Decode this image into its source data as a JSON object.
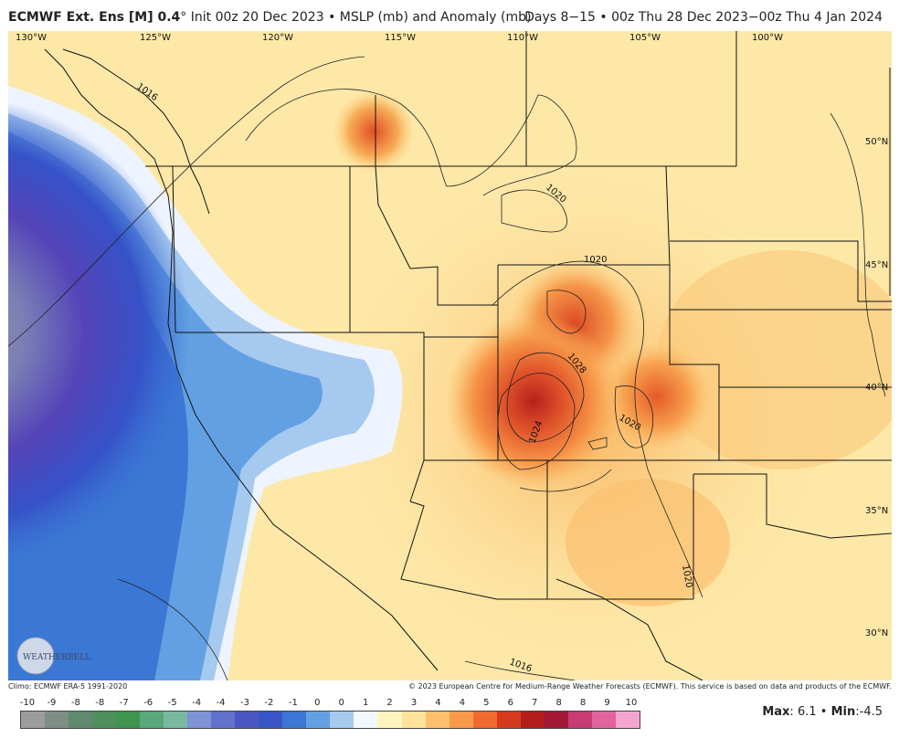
{
  "header": {
    "model_name": "ECMWF Ext. Ens [M] 0.4",
    "degree": "°",
    "init": "Init 00z 20 Dec 2023",
    "bullet": "•",
    "product": "MSLP (mb) and Anomaly (mb)",
    "valid": "Days 8−15 • 00z Thu 28 Dec 2023−00z Thu 4 Jan 2024"
  },
  "map": {
    "longitude_labels": [
      "130°W",
      "125°W",
      "120°W",
      "115°W",
      "110°W",
      "105°W",
      "100°W"
    ],
    "latitude_labels": [
      "50°N",
      "45°N",
      "40°N",
      "35°N",
      "30°N"
    ],
    "contour_labels": [
      "1016",
      "1020",
      "1020",
      "1028",
      "1024",
      "1020",
      "1020",
      "1016"
    ],
    "logo_text": "WEATHERBELL"
  },
  "credits": {
    "climo": "Climo: ECMWF ERA-5 1991-2020",
    "copyright": "© 2023 European Centre for Medium-Range Weather Forecasts (ECMWF). This service is based on data and products of the ECMWF."
  },
  "legend": {
    "ticks": [
      "-10",
      "-9",
      "-8",
      "-8",
      "-7",
      "-6",
      "-5",
      "-4",
      "-4",
      "-3",
      "-2",
      "-1",
      "0",
      "0",
      "1",
      "2",
      "3",
      "4",
      "4",
      "5",
      "6",
      "7",
      "8",
      "8",
      "9",
      "10"
    ],
    "colors": [
      "#9c9c9c",
      "#7d8f85",
      "#5f8a6f",
      "#4f8f5c",
      "#3f9450",
      "#5aa77a",
      "#79b9a0",
      "#7e93d3",
      "#6072cb",
      "#4a57c2",
      "#3a55c8",
      "#3b77d4",
      "#63a0e3",
      "#a6c9f0",
      "#f3f7ff",
      "#fff3c0",
      "#fee39a",
      "#fdc06b",
      "#f99a49",
      "#ef6a2e",
      "#d63a1e",
      "#b31e1c",
      "#a11935",
      "#c73c73",
      "#e0659f",
      "#f4a5cf"
    ]
  },
  "stats": {
    "max_label": "Max",
    "max_value": "6.1",
    "min_label": "Min",
    "min_value": "-4.5"
  }
}
